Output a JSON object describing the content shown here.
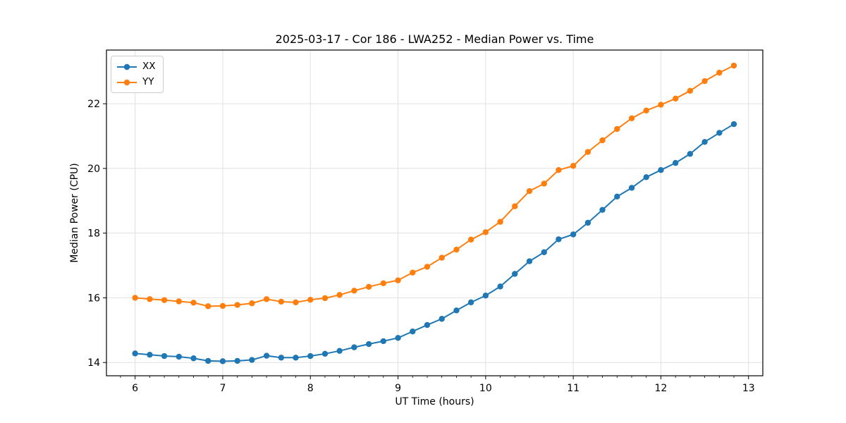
{
  "style": {
    "background": "#ffffff",
    "grid_color": "#e0e0e0",
    "spine_color": "#000000",
    "tick_color": "#000000",
    "legend_border": "#cccccc"
  },
  "chart_data": {
    "type": "line",
    "title": "2025-03-17 - Cor 186 - LWA252 - Median Power vs. Time",
    "xlabel": "UT Time (hours)",
    "ylabel": "Median Power (CPU)",
    "xlim": [
      5.673,
      13.163
    ],
    "ylim": [
      13.59,
      23.66
    ],
    "xticks": [
      6,
      7,
      8,
      9,
      10,
      11,
      12,
      13
    ],
    "yticks": [
      14,
      16,
      18,
      20,
      22
    ],
    "x_minor_step": 0.1666667,
    "grid": true,
    "legend_position": "upper left",
    "marker": "o",
    "x": [
      6.0,
      6.167,
      6.333,
      6.5,
      6.667,
      6.833,
      7.0,
      7.167,
      7.333,
      7.5,
      7.667,
      7.833,
      8.0,
      8.167,
      8.333,
      8.5,
      8.667,
      8.833,
      9.0,
      9.167,
      9.333,
      9.5,
      9.667,
      9.833,
      10.0,
      10.167,
      10.333,
      10.5,
      10.667,
      10.833,
      11.0,
      11.167,
      11.333,
      11.5,
      11.667,
      11.833,
      12.0,
      12.167,
      12.333,
      12.5,
      12.667,
      12.833
    ],
    "series": [
      {
        "name": "XX",
        "color": "#1f77b4",
        "values": [
          14.28,
          14.24,
          14.2,
          14.18,
          14.13,
          14.05,
          14.04,
          14.05,
          14.08,
          14.21,
          14.15,
          14.15,
          14.2,
          14.27,
          14.36,
          14.47,
          14.57,
          14.66,
          14.76,
          14.96,
          15.16,
          15.35,
          15.61,
          15.86,
          16.07,
          16.35,
          16.74,
          17.13,
          17.41,
          17.81,
          17.96,
          18.32,
          18.72,
          19.13,
          19.4,
          19.73,
          19.95,
          20.17,
          20.45,
          20.82,
          21.1,
          21.37
        ]
      },
      {
        "name": "YY",
        "color": "#ff7f0e",
        "values": [
          16.0,
          15.96,
          15.93,
          15.89,
          15.85,
          15.74,
          15.75,
          15.78,
          15.83,
          15.96,
          15.88,
          15.86,
          15.94,
          15.99,
          16.09,
          16.22,
          16.34,
          16.45,
          16.54,
          16.78,
          16.96,
          17.24,
          17.49,
          17.8,
          18.03,
          18.35,
          18.83,
          19.3,
          19.53,
          19.95,
          20.08,
          20.51,
          20.87,
          21.22,
          21.55,
          21.79,
          21.97,
          22.16,
          22.4,
          22.7,
          22.96,
          23.18
        ]
      }
    ]
  }
}
